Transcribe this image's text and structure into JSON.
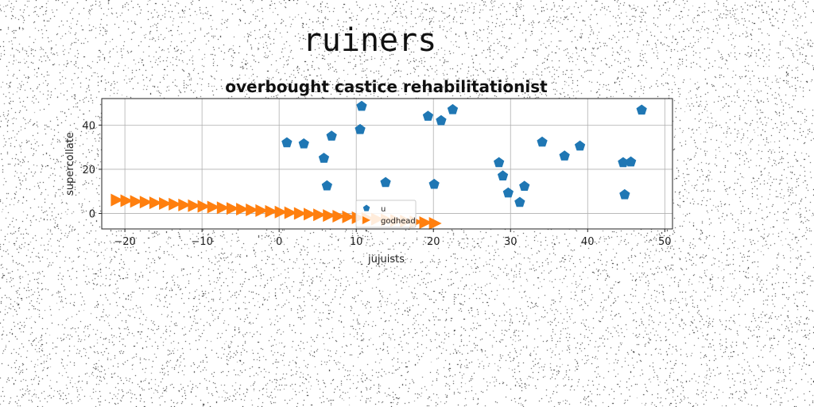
{
  "suptitle": "ruiners",
  "chart_data": {
    "type": "scatter",
    "title": "overbought castice rehabilitationist",
    "xlabel": "jujuists",
    "ylabel": "supercollate",
    "xlim": [
      -23,
      51
    ],
    "ylim": [
      -7,
      52
    ],
    "xticks": [
      -20,
      -10,
      0,
      10,
      20,
      30,
      40,
      50
    ],
    "yticks": [
      0,
      20,
      40
    ],
    "grid": true,
    "legend_placement": "lower-center",
    "series": [
      {
        "name": "u",
        "marker": "pentagon",
        "color": "#1f77b4",
        "points": [
          [
            1,
            32
          ],
          [
            3.2,
            31.5
          ],
          [
            5.8,
            25
          ],
          [
            6.2,
            12.5
          ],
          [
            6.8,
            35
          ],
          [
            10.5,
            38
          ],
          [
            10.7,
            48.5
          ],
          [
            13.8,
            14
          ],
          [
            19.3,
            44
          ],
          [
            20.1,
            13.2
          ],
          [
            21,
            42
          ],
          [
            22.5,
            47
          ],
          [
            28.5,
            23
          ],
          [
            29,
            17
          ],
          [
            29.7,
            9.3
          ],
          [
            31.2,
            5
          ],
          [
            31.8,
            12.3
          ],
          [
            34.1,
            32.3
          ],
          [
            37,
            26
          ],
          [
            39,
            30.5
          ],
          [
            44.6,
            23
          ],
          [
            44.8,
            8.5
          ],
          [
            45.6,
            23.3
          ],
          [
            47,
            46.8
          ]
        ]
      },
      {
        "name": "godhead",
        "marker": "triangle-right",
        "color": "#ff7f0e",
        "points": [
          [
            -21,
            6.1
          ],
          [
            -19.75,
            5.78
          ],
          [
            -18.5,
            5.46
          ],
          [
            -17.25,
            5.14
          ],
          [
            -16,
            4.82
          ],
          [
            -14.75,
            4.5
          ],
          [
            -13.5,
            4.18
          ],
          [
            -12.25,
            3.86
          ],
          [
            -11,
            3.54
          ],
          [
            -9.75,
            3.22
          ],
          [
            -8.5,
            2.9
          ],
          [
            -7.25,
            2.58
          ],
          [
            -6,
            2.26
          ],
          [
            -4.75,
            1.94
          ],
          [
            -3.5,
            1.62
          ],
          [
            -2.25,
            1.3
          ],
          [
            -1,
            0.98
          ],
          [
            0.25,
            0.66
          ],
          [
            1.5,
            0.34
          ],
          [
            2.75,
            0.02
          ],
          [
            4,
            -0.3
          ],
          [
            5.25,
            -0.62
          ],
          [
            6.5,
            -0.94
          ],
          [
            7.75,
            -1.26
          ],
          [
            9,
            -1.58
          ],
          [
            10.25,
            -1.9
          ],
          [
            11.5,
            -2.22
          ],
          [
            12.75,
            -2.54
          ],
          [
            14,
            -2.86
          ],
          [
            15.25,
            -3.18
          ],
          [
            16.5,
            -3.5
          ],
          [
            17.75,
            -3.82
          ],
          [
            19,
            -4.14
          ],
          [
            20.25,
            -4.46
          ]
        ]
      }
    ]
  }
}
